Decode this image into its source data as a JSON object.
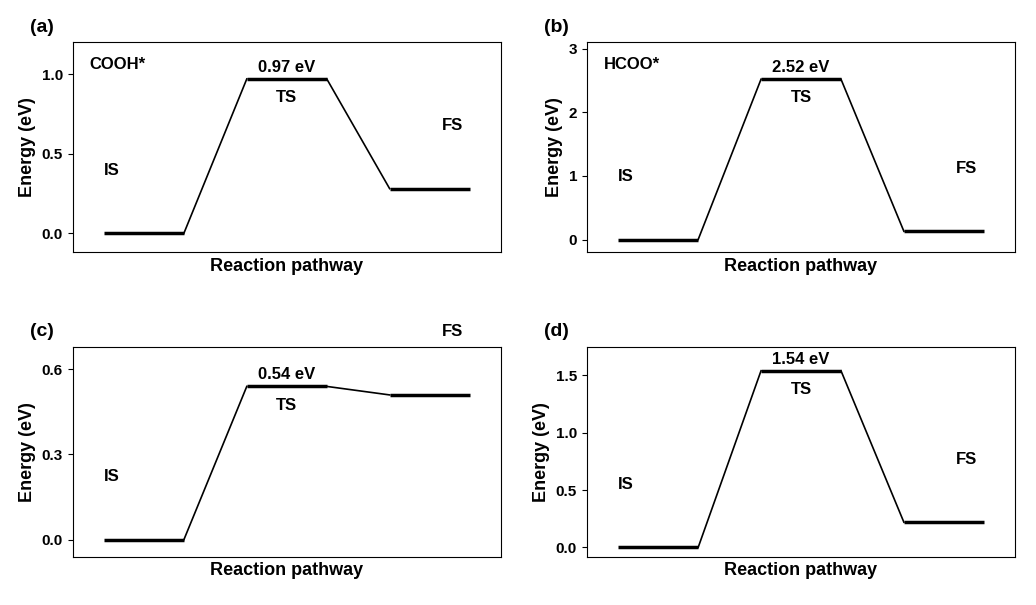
{
  "chart_data": [
    {
      "type": "line",
      "title": "(a)",
      "annotations": [
        "COOH*"
      ],
      "xlabel": "Reaction pathway",
      "ylabel": "Energy (eV)",
      "categories": [
        "IS",
        "TS",
        "FS"
      ],
      "values": [
        0,
        0.97,
        0.28
      ],
      "data_labels": true,
      "value_labels": [
        null,
        "0.97 eV",
        null
      ],
      "color": "#000000",
      "tick_labels": "y",
      "ylim": [
        -0.12,
        1.2
      ],
      "yticks": [
        {
          "value": 0,
          "label": "0.0"
        },
        {
          "value": 0.5,
          "label": "0.5"
        },
        {
          "value": 1,
          "label": "1.0"
        }
      ]
    },
    {
      "type": "line",
      "title": "(b)",
      "annotations": [
        "HCOO*"
      ],
      "xlabel": "Reaction pathway",
      "ylabel": "Energy (eV)",
      "categories": [
        "IS",
        "TS",
        "FS"
      ],
      "values": [
        0,
        2.52,
        0.13
      ],
      "data_labels": true,
      "value_labels": [
        null,
        "2.52 eV",
        null
      ],
      "color": "#000000",
      "tick_labels": "y",
      "ylim": [
        -0.2,
        3.1
      ],
      "yticks": [
        0,
        1,
        2,
        3
      ]
    },
    {
      "type": "line",
      "title": "(c)",
      "xlabel": "Reaction pathway",
      "ylabel": "Energy (eV)",
      "categories": [
        "IS",
        "TS",
        "FS"
      ],
      "values": [
        0,
        0.54,
        0.51
      ],
      "data_labels": true,
      "value_labels": [
        null,
        "0.54 eV",
        null
      ],
      "color": "#000000",
      "tick_labels": "y",
      "ylim": [
        -0.06,
        0.68
      ],
      "yticks": [
        {
          "value": 0,
          "label": "0.0"
        },
        {
          "value": 0.3,
          "label": "0.3"
        },
        {
          "value": 0.6,
          "label": "0.6"
        }
      ]
    },
    {
      "type": "line",
      "title": "(d)",
      "xlabel": "Reaction pathway",
      "ylabel": "Energy (eV)",
      "categories": [
        "IS",
        "TS",
        "FS"
      ],
      "values": [
        0,
        1.54,
        0.22
      ],
      "data_labels": true,
      "value_labels": [
        null,
        "1.54 eV",
        null
      ],
      "color": "#000000",
      "tick_labels": "y",
      "ylim": [
        -0.08,
        1.75
      ],
      "yticks": [
        {
          "value": 0,
          "label": "0.0"
        },
        {
          "value": 0.5,
          "label": "0.5"
        },
        {
          "value": 1,
          "label": "1.0"
        },
        {
          "value": 1.5,
          "label": "1.5"
        }
      ]
    }
  ]
}
